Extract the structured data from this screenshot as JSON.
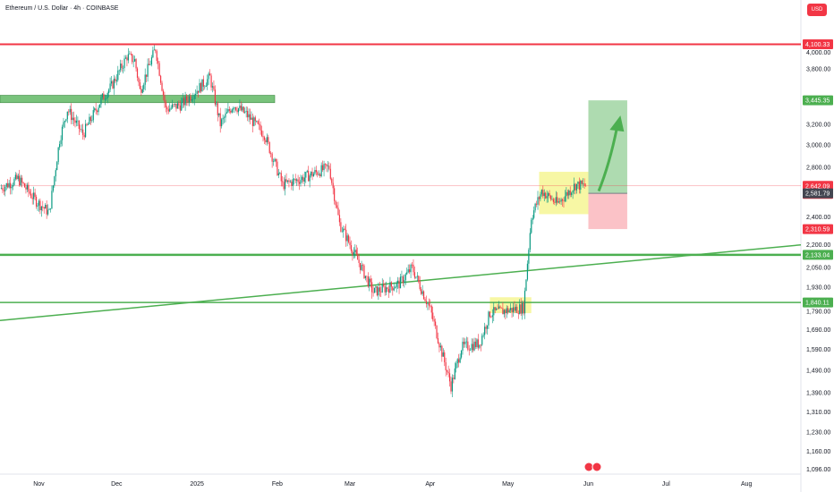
{
  "header": {
    "title": "Ethereum / U.S. Dollar · 4h · COINBASE",
    "currency": "USD"
  },
  "chart_data": {
    "type": "candlestick",
    "title": "Ethereum / U.S. Dollar · 4h · COINBASE",
    "y_ticks": [
      4000,
      3800,
      3200,
      3000,
      2800,
      2600,
      2400,
      2200,
      2050,
      1930,
      1790,
      1690,
      1590,
      1490,
      1390,
      1310,
      1230,
      1160,
      1096
    ],
    "y_tick_labels": [
      "4,000.00",
      "3,800.00",
      "3,200.00",
      "3,000.00",
      "2,800.00",
      "2,600.00",
      "2,400.00",
      "2,200.00",
      "2,050.00",
      "1,930.00",
      "1,790.00",
      "1,690.00",
      "1,590.00",
      "1,490.00",
      "1,390.00",
      "1,310.00",
      "1,230.00",
      "1,160.00",
      "1,096.00"
    ],
    "x_ticks": [
      "Nov",
      "Dec",
      "2025",
      "Feb",
      "Mar",
      "Apr",
      "May",
      "Jun",
      "Jul",
      "Aug"
    ],
    "x_tick_dates": [
      "2024-11-01",
      "2024-12-01",
      "2025-01-01",
      "2025-02-01",
      "2025-03-01",
      "2025-04-01",
      "2025-05-01",
      "2025-06-01",
      "2025-07-01",
      "2025-08-01"
    ],
    "scale": "log",
    "ylim": [
      1080,
      4450
    ],
    "xlim": [
      "2024-10-17",
      "2025-08-22"
    ],
    "grid": false,
    "price_path": [
      {
        "date": "2024-10-17",
        "price": 2620
      },
      {
        "date": "2024-10-24",
        "price": 2700
      },
      {
        "date": "2024-10-31",
        "price": 2520
      },
      {
        "date": "2024-11-05",
        "price": 2430
      },
      {
        "date": "2024-11-09",
        "price": 3050
      },
      {
        "date": "2024-11-12",
        "price": 3350
      },
      {
        "date": "2024-11-18",
        "price": 3100
      },
      {
        "date": "2024-11-25",
        "price": 3450
      },
      {
        "date": "2024-11-29",
        "price": 3600
      },
      {
        "date": "2024-12-05",
        "price": 3950
      },
      {
        "date": "2024-12-08",
        "price": 3900
      },
      {
        "date": "2024-12-10",
        "price": 3550
      },
      {
        "date": "2024-12-16",
        "price": 4050
      },
      {
        "date": "2024-12-20",
        "price": 3350
      },
      {
        "date": "2024-12-26",
        "price": 3400
      },
      {
        "date": "2025-01-06",
        "price": 3700
      },
      {
        "date": "2025-01-10",
        "price": 3200
      },
      {
        "date": "2025-01-15",
        "price": 3400
      },
      {
        "date": "2025-01-20",
        "price": 3300
      },
      {
        "date": "2025-01-27",
        "price": 3100
      },
      {
        "date": "2025-02-03",
        "price": 2650
      },
      {
        "date": "2025-02-10",
        "price": 2700
      },
      {
        "date": "2025-02-21",
        "price": 2800
      },
      {
        "date": "2025-02-25",
        "price": 2350
      },
      {
        "date": "2025-03-04",
        "price": 2100
      },
      {
        "date": "2025-03-10",
        "price": 1900
      },
      {
        "date": "2025-03-20",
        "price": 1950
      },
      {
        "date": "2025-03-25",
        "price": 2050
      },
      {
        "date": "2025-04-01",
        "price": 1800
      },
      {
        "date": "2025-04-09",
        "price": 1420
      },
      {
        "date": "2025-04-13",
        "price": 1600
      },
      {
        "date": "2025-04-20",
        "price": 1620
      },
      {
        "date": "2025-04-24",
        "price": 1780
      },
      {
        "date": "2025-05-07",
        "price": 1810
      },
      {
        "date": "2025-05-10",
        "price": 2400
      },
      {
        "date": "2025-05-14",
        "price": 2600
      },
      {
        "date": "2025-05-20",
        "price": 2500
      },
      {
        "date": "2025-05-27",
        "price": 2650
      },
      {
        "date": "2025-05-31",
        "price": 2642
      }
    ],
    "horizontal_levels": [
      {
        "price": 4100.33,
        "label": "4,100.33",
        "color": "#f23645"
      },
      {
        "price": 2133.04,
        "label": "2,133.04",
        "color": "#4caf50"
      },
      {
        "price": 1840.11,
        "label": "1,840.11",
        "color": "#4caf50"
      }
    ],
    "price_badges": [
      {
        "price": 3445.35,
        "label": "3,445.35",
        "color": "#4caf50"
      },
      {
        "price": 2642.09,
        "label": "2,642.09",
        "sublabel": "02:06:05",
        "color": "#f23645"
      },
      {
        "price": 2581.79,
        "label": "2,581.79",
        "color": "#434651"
      },
      {
        "price": 2310.59,
        "label": "2,310.59",
        "color": "#f23645"
      }
    ],
    "zones": [
      {
        "start": "2024-10-17",
        "end": "2025-01-31",
        "low": 3420,
        "high": 3500,
        "color": "#4caf50"
      },
      {
        "start": "2025-04-24",
        "end": "2025-05-10",
        "low": 1780,
        "high": 1870,
        "color": "#f0f04a"
      },
      {
        "start": "2025-05-13",
        "end": "2025-06-01",
        "low": 2420,
        "high": 2760,
        "color": "#f0f04a"
      }
    ],
    "trendline": {
      "start": {
        "date": "2024-10-17",
        "price": 1740
      },
      "end": {
        "date": "2025-08-22",
        "price": 2200
      },
      "color": "#4caf50"
    },
    "position": {
      "start": "2025-06-01",
      "end": "2025-06-16",
      "entry": 2581.79,
      "target": 3445.35,
      "stop": 2310.59
    },
    "arrow": {
      "from": {
        "date": "2025-06-05",
        "price": 2600
      },
      "to": {
        "date": "2025-06-12",
        "price": 3250
      },
      "color": "#4caf50"
    }
  }
}
